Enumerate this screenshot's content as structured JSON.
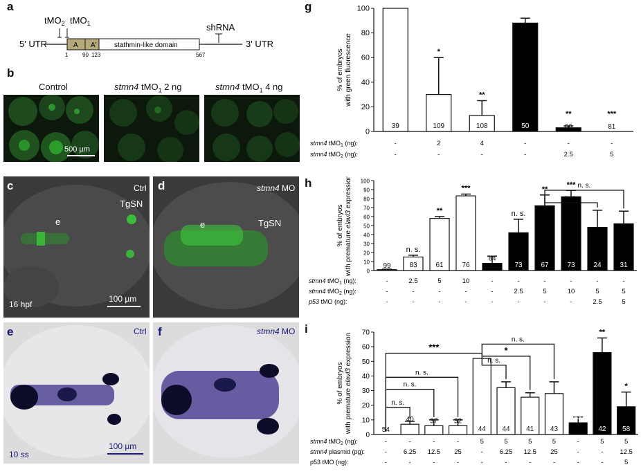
{
  "panel_a": {
    "letter": "a",
    "five_utr": "5' UTR",
    "three_utr": "3' UTR",
    "tmo2": "tMO",
    "tmo2_sub": "2",
    "tmo1": "tMO",
    "tmo1_sub": "1",
    "shrna": "shRNA",
    "box_a": "A",
    "box_a2": "A'",
    "domain": "stathmin-like domain",
    "pos": [
      "1",
      "90",
      "123",
      "567"
    ]
  },
  "panel_b": {
    "letter": "b",
    "labels": [
      "Control",
      "stmn4",
      " tMO",
      "1",
      " 2 ng",
      " 4 ng"
    ],
    "scale": "500 µm"
  },
  "panel_c": {
    "letter": "c",
    "ctrl": "Ctrl",
    "tgsn": "TgSN",
    "e": "e",
    "hpf": "16 hpf",
    "scale": "100 µm"
  },
  "panel_d": {
    "letter": "d",
    "mo_italic": "stmn4",
    "mo": " MO",
    "tgsn": "TgSN",
    "e": "e"
  },
  "panel_e": {
    "letter": "e",
    "ctrl": "Ctrl",
    "ss": "10 ss",
    "scale": "100 µm"
  },
  "panel_f": {
    "letter": "f",
    "mo_italic": "stmn4",
    "mo": " MO"
  },
  "chart_data": [
    {
      "panel": "g",
      "type": "bar",
      "ylabel": [
        "% of embryos",
        "with green fluorescence"
      ],
      "ylim": [
        0,
        100
      ],
      "yticks": [
        "0",
        "20",
        "40",
        "60",
        "80",
        "100"
      ],
      "bars": [
        {
          "value": 100,
          "error": 0,
          "fill": "white",
          "n": "39",
          "sig": ""
        },
        {
          "value": 30,
          "error": 30,
          "fill": "white",
          "n": "109",
          "sig": "*"
        },
        {
          "value": 13,
          "error": 12,
          "fill": "white",
          "n": "108",
          "sig": "**"
        },
        {
          "value": 88,
          "error": 4,
          "fill": "black",
          "n": "50",
          "sig": ""
        },
        {
          "value": 3,
          "error": 1.5,
          "fill": "black",
          "n": "66",
          "sig": "**"
        },
        {
          "value": 0,
          "error": 0,
          "fill": "black",
          "n": "81",
          "sig": "***"
        }
      ],
      "rows": [
        {
          "label_i": "stmn4",
          "label": " tMO",
          "sub": "1",
          "unit": " (ng):",
          "values": [
            "-",
            "2",
            "4",
            "-",
            "-",
            "-"
          ]
        },
        {
          "label_i": "stmn4",
          "label": " tMO",
          "sub": "2",
          "unit": " (ng):",
          "values": [
            "-",
            "-",
            "-",
            "-",
            "2.5",
            "5"
          ]
        }
      ]
    },
    {
      "panel": "h",
      "type": "bar",
      "ylabel": [
        "% of embryos",
        "with premature ",
        "elavl3",
        " expression"
      ],
      "ylim": [
        0,
        100
      ],
      "yticks": [
        "0",
        "10",
        "20",
        "30",
        "40",
        "50",
        "60",
        "70",
        "80",
        "90",
        "100"
      ],
      "bars": [
        {
          "value": 1,
          "error": 0.5,
          "fill": "white",
          "n": "99",
          "sig": ""
        },
        {
          "value": 15,
          "error": 2,
          "fill": "white",
          "n": "83",
          "sig": "n. s."
        },
        {
          "value": 58,
          "error": 2,
          "fill": "white",
          "n": "61",
          "sig": "**"
        },
        {
          "value": 83,
          "error": 2,
          "fill": "white",
          "n": "76",
          "sig": "***"
        },
        {
          "value": 8,
          "error": 8,
          "fill": "black",
          "n": "84",
          "sig": ""
        },
        {
          "value": 42,
          "error": 15,
          "fill": "black",
          "n": "73",
          "sig": "n. s."
        },
        {
          "value": 72,
          "error": 12,
          "fill": "black",
          "n": "67",
          "sig": "**"
        },
        {
          "value": 82,
          "error": 7,
          "fill": "black",
          "n": "73",
          "sig": "***"
        },
        {
          "value": 48,
          "error": 19,
          "fill": "black",
          "n": "24",
          "sig": ""
        },
        {
          "value": 52,
          "error": 14,
          "fill": "black",
          "n": "31",
          "sig": ""
        }
      ],
      "brackets": [
        {
          "from": 6,
          "to": 8,
          "label": "n. s."
        },
        {
          "from": 6,
          "to": 9,
          "label": "n. s."
        }
      ],
      "rows": [
        {
          "label_i": "stmn4",
          "label": " tMO",
          "sub": "1",
          "unit": " (ng):",
          "values": [
            "-",
            "2.5",
            "5",
            "10",
            "-",
            "-",
            "-",
            "-",
            "-",
            "-"
          ]
        },
        {
          "label_i": "stmn4",
          "label": " tMO",
          "sub": "2",
          "unit": " (ng):",
          "values": [
            "-",
            "-",
            "-",
            "-",
            "-",
            "2.5",
            "5",
            "10",
            "5",
            "5"
          ]
        },
        {
          "label_i": "p53",
          "label": " tMO",
          "sub": "",
          "unit": " (ng):",
          "values": [
            "-",
            "-",
            "-",
            "-",
            "-",
            "-",
            "-",
            "-",
            "2.5",
            "5"
          ]
        }
      ]
    },
    {
      "panel": "i",
      "type": "bar",
      "ylabel": [
        "% of embryos",
        "with premature ",
        "elavl3",
        " expression"
      ],
      "ylim": [
        0,
        70
      ],
      "yticks": [
        "0",
        "10",
        "20",
        "30",
        "40",
        "50",
        "60",
        "70"
      ],
      "bars": [
        {
          "value": 0,
          "error": 0,
          "fill": "white",
          "n": "54",
          "sig": ""
        },
        {
          "value": 7,
          "error": 2,
          "fill": "white",
          "n": "40",
          "sig": ""
        },
        {
          "value": 6,
          "error": 4,
          "fill": "white",
          "n": "37",
          "sig": ""
        },
        {
          "value": 6,
          "error": 4,
          "fill": "white",
          "n": "32",
          "sig": ""
        },
        {
          "value": 52,
          "error": 0,
          "fill": "white",
          "n": "44",
          "sig": ""
        },
        {
          "value": 32,
          "error": 4,
          "fill": "white",
          "n": "44",
          "sig": ""
        },
        {
          "value": 25.5,
          "error": 3,
          "fill": "white",
          "n": "41",
          "sig": ""
        },
        {
          "value": 28,
          "error": 8,
          "fill": "white",
          "n": "43",
          "sig": ""
        },
        {
          "value": 8,
          "error": 4,
          "fill": "black",
          "n": "54",
          "sig": ""
        },
        {
          "value": 56,
          "error": 10,
          "fill": "black",
          "n": "42",
          "sig": "**"
        },
        {
          "value": 19,
          "error": 10,
          "fill": "black",
          "n": "58",
          "sig": "*"
        }
      ],
      "brackets": [
        {
          "from": 0,
          "to": 1,
          "label": "n. s."
        },
        {
          "from": 0,
          "to": 2,
          "label": "n. s."
        },
        {
          "from": 0,
          "to": 3,
          "label": "n. s."
        },
        {
          "from": 0,
          "to": 4,
          "label": "***"
        },
        {
          "from": 4,
          "to": 5,
          "label": "n. s."
        },
        {
          "from": 4,
          "to": 6,
          "label": "*"
        },
        {
          "from": 4,
          "to": 7,
          "label": "n. s."
        }
      ],
      "rows": [
        {
          "label_i": "stmn4",
          "label": " tMO",
          "sub": "2",
          "unit": " (ng):",
          "values": [
            "-",
            "-",
            "-",
            "-",
            "5",
            "5",
            "5",
            "5",
            "-",
            "5",
            "5"
          ]
        },
        {
          "label_i": "stmn4",
          "label": " plasmid",
          "sub": "",
          "unit": " (pg):",
          "values": [
            "-",
            "6.25",
            "12.5",
            "25",
            "-",
            "6.25",
            "12.5",
            "25",
            "-",
            "-",
            "12.5"
          ]
        },
        {
          "label_i": "",
          "label": "p53 tMO",
          "sub": "",
          "unit": " (ng):",
          "values": [
            "-",
            "-",
            "-",
            "-",
            "-",
            "-",
            "-",
            "-",
            "-",
            "-",
            "5"
          ]
        }
      ]
    }
  ]
}
